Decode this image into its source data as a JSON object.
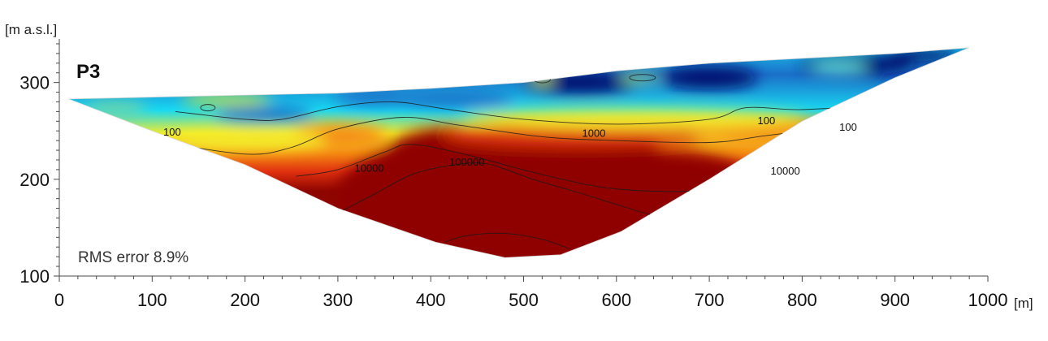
{
  "chart_data": {
    "type": "heatmap",
    "title": "P3",
    "annotation": "RMS error 8.9%",
    "xlabel": "[m]",
    "ylabel": "[m a.s.l.]",
    "xlim": [
      0,
      1000
    ],
    "ylim": [
      100,
      345
    ],
    "x_ticks": [
      0,
      100,
      200,
      300,
      400,
      500,
      600,
      700,
      800,
      900,
      1000
    ],
    "y_ticks": [
      100,
      200,
      300
    ],
    "grid": false,
    "colors": {
      "very_low": "#000a6e",
      "low": "#1b6fc9",
      "mid_low": "#18d9f2",
      "mid": "#f4ec2a",
      "mid_high": "#f58a12",
      "high": "#e0300f",
      "very_high": "#8f0500"
    },
    "section_outline": [
      [
        10,
        283
      ],
      [
        150,
        286
      ],
      [
        300,
        289
      ],
      [
        400,
        294
      ],
      [
        500,
        300
      ],
      [
        600,
        312
      ],
      [
        700,
        320
      ],
      [
        800,
        325
      ],
      [
        900,
        330
      ],
      [
        980,
        336
      ],
      [
        900,
        305
      ],
      [
        800,
        260
      ],
      [
        700,
        200
      ],
      [
        605,
        146
      ],
      [
        540,
        122
      ],
      [
        480,
        119
      ],
      [
        405,
        135
      ],
      [
        300,
        170
      ],
      [
        200,
        215
      ],
      [
        100,
        250
      ],
      [
        10,
        283
      ]
    ],
    "contours": [
      {
        "label": "1000",
        "points": [
          [
            100,
            240
          ],
          [
            200,
            226
          ],
          [
            250,
            233
          ],
          [
            300,
            252
          ],
          [
            370,
            264
          ],
          [
            430,
            256
          ],
          [
            520,
            244
          ],
          [
            600,
            240
          ],
          [
            700,
            238
          ],
          [
            760,
            245
          ],
          [
            820,
            252
          ]
        ]
      },
      {
        "label": "100",
        "points": [
          [
            125,
            270
          ],
          [
            200,
            262
          ],
          [
            240,
            262
          ],
          [
            300,
            275
          ],
          [
            360,
            280
          ],
          [
            420,
            272
          ],
          [
            500,
            262
          ],
          [
            600,
            257
          ],
          [
            700,
            262
          ],
          [
            740,
            274
          ],
          [
            800,
            272
          ],
          [
            880,
            278
          ],
          [
            950,
            290
          ]
        ]
      },
      {
        "label": "10000",
        "points": [
          [
            255,
            203
          ],
          [
            300,
            210
          ],
          [
            350,
            228
          ],
          [
            380,
            236
          ],
          [
            440,
            225
          ],
          [
            520,
            205
          ],
          [
            600,
            190
          ],
          [
            700,
            189
          ],
          [
            770,
            206
          ],
          [
            830,
            225
          ]
        ]
      },
      {
        "label": "100000",
        "points": [
          [
            300,
            165
          ],
          [
            340,
            185
          ],
          [
            380,
            205
          ],
          [
            420,
            214
          ],
          [
            460,
            216
          ],
          [
            510,
            200
          ],
          [
            560,
            186
          ],
          [
            620,
            168
          ],
          [
            660,
            157
          ],
          [
            680,
            150
          ]
        ]
      },
      {
        "label": "",
        "points": [
          [
            415,
            135
          ],
          [
            440,
            142
          ],
          [
            480,
            144
          ],
          [
            520,
            138
          ],
          [
            550,
            128
          ]
        ]
      }
    ],
    "contour_label_positions": [
      {
        "text": "1000",
        "x": 563,
        "y": 244
      },
      {
        "text": "100",
        "x": 752,
        "y": 257
      },
      {
        "text": "10000",
        "x": 318,
        "y": 208
      },
      {
        "text": "100000",
        "x": 420,
        "y": 214
      },
      {
        "text": "10000",
        "x": 766,
        "y": 205
      },
      {
        "text": "100",
        "x": 112,
        "y": 245
      },
      {
        "text": "100",
        "x": 840,
        "y": 250
      }
    ]
  }
}
